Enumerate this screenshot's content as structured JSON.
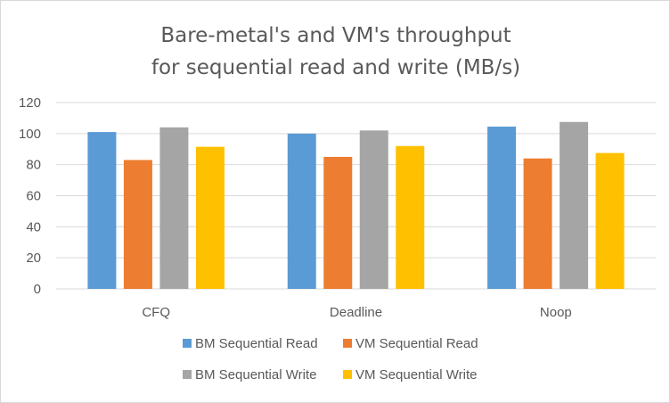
{
  "chart_data": {
    "type": "bar",
    "title": [
      "Bare-metal's and VM's throughput",
      "for sequential read and write (MB/s)"
    ],
    "categories": [
      "CFQ",
      "Deadline",
      "Noop"
    ],
    "series": [
      {
        "name": "BM Sequential Read",
        "color": "#5b9bd5",
        "values": [
          101,
          100,
          104.5
        ]
      },
      {
        "name": "VM Sequential Read",
        "color": "#ed7d31",
        "values": [
          83,
          85,
          84
        ]
      },
      {
        "name": "BM Sequential Write",
        "color": "#a5a5a5",
        "values": [
          104,
          102,
          107.5
        ]
      },
      {
        "name": "VM Sequential Write",
        "color": "#ffc000",
        "values": [
          91.5,
          92,
          87.5
        ]
      }
    ],
    "ylim": [
      0,
      120
    ],
    "yticks": [
      0,
      20,
      40,
      60,
      80,
      100,
      120
    ],
    "grid": true,
    "legend_position": "bottom"
  }
}
